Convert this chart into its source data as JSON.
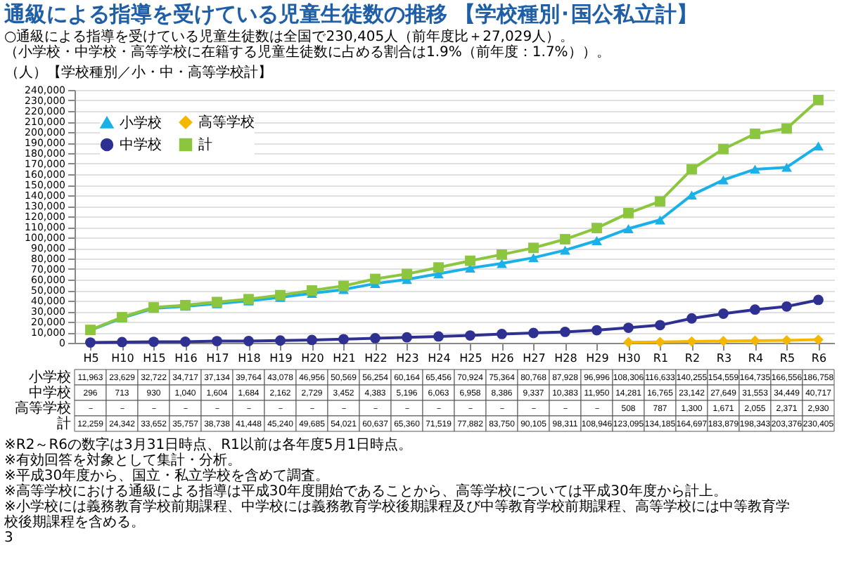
{
  "chart_data": {
    "type": "line",
    "title": "通級による指導を受けている児童生徒数の推移 【学校種別･国公私立計】",
    "subtitle": "○通級による指導を受けている児童生徒数は全国で230,405人（前年度比＋27,029人）。（小学校・中学校・高等学校に在籍する児童生徒数に占める割合は1.9%（前年度：1.7%））。",
    "ylabel": "（人）【学校種別／小・中・高等学校計】",
    "categories": [
      "H5",
      "H10",
      "H15",
      "H16",
      "H17",
      "H18",
      "H19",
      "H20",
      "H21",
      "H22",
      "H23",
      "H24",
      "H25",
      "H26",
      "H27",
      "H28",
      "H29",
      "H30",
      "R1",
      "R2",
      "R3",
      "R4",
      "R5",
      "R6"
    ],
    "series": [
      {
        "name": "小学校",
        "color": "#1ab0e8",
        "marker": "triangle",
        "values": [
          11963,
          23629,
          32722,
          34717,
          37134,
          39764,
          43078,
          46956,
          50569,
          56254,
          60164,
          65456,
          70924,
          75364,
          80768,
          87928,
          96996,
          108306,
          116633,
          140255,
          154559,
          164735,
          166556,
          186758
        ],
        "value_labels": [
          "11,963",
          "23,629",
          "32,722",
          "34,717",
          "37,134",
          "39,764",
          "43,078",
          "46,956",
          "50,569",
          "56,254",
          "60,164",
          "65,456",
          "70,924",
          "75,364",
          "80,768",
          "87,928",
          "96,996",
          "108,306",
          "116,633",
          "140,255",
          "154,559",
          "164,735",
          "166,556",
          "186,758"
        ]
      },
      {
        "name": "中学校",
        "color": "#2e3192",
        "marker": "circle",
        "values": [
          296,
          713,
          930,
          1040,
          1604,
          1684,
          2162,
          2729,
          3452,
          4383,
          5196,
          6063,
          6958,
          8386,
          9337,
          10383,
          11950,
          14281,
          16765,
          23142,
          27649,
          31553,
          34449,
          40717
        ],
        "value_labels": [
          "296",
          "713",
          "930",
          "1,040",
          "1,604",
          "1,684",
          "2,162",
          "2,729",
          "3,452",
          "4,383",
          "5,196",
          "6,063",
          "6,958",
          "8,386",
          "9,337",
          "10,383",
          "11,950",
          "14,281",
          "16,765",
          "23,142",
          "27,649",
          "31,553",
          "34,449",
          "40,717"
        ]
      },
      {
        "name": "高等学校",
        "color": "#f5b800",
        "marker": "diamond",
        "values": [
          null,
          null,
          null,
          null,
          null,
          null,
          null,
          null,
          null,
          null,
          null,
          null,
          null,
          null,
          null,
          null,
          null,
          508,
          787,
          1300,
          1671,
          2055,
          2371,
          2930
        ],
        "value_labels": [
          "－",
          "－",
          "－",
          "－",
          "－",
          "－",
          "－",
          "－",
          "－",
          "－",
          "－",
          "－",
          "－",
          "－",
          "－",
          "－",
          "－",
          "508",
          "787",
          "1,300",
          "1,671",
          "2,055",
          "2,371",
          "2,930"
        ]
      },
      {
        "name": "計",
        "color": "#8cc63f",
        "marker": "square",
        "values": [
          12259,
          24342,
          33652,
          35757,
          38738,
          41448,
          45240,
          49685,
          54021,
          60637,
          65360,
          71519,
          77882,
          83750,
          90105,
          98311,
          108946,
          123095,
          134185,
          164697,
          183879,
          198343,
          203376,
          230405
        ],
        "value_labels": [
          "12,259",
          "24,342",
          "33,652",
          "35,757",
          "38,738",
          "41,448",
          "45,240",
          "49,685",
          "54,021",
          "60,637",
          "65,360",
          "71,519",
          "77,882",
          "83,750",
          "90,105",
          "98,311",
          "108,946",
          "123,095",
          "134,185",
          "164,697",
          "183,879",
          "198,343",
          "203,376",
          "230,405"
        ]
      }
    ],
    "ylim": [
      0,
      240000
    ],
    "yticks": [
      0,
      {
        "value": 10000,
        "label": "10,000"
      },
      {
        "value": 20000,
        "label": "20,000"
      },
      {
        "value": 30000,
        "label": "30,000"
      },
      {
        "value": 40000,
        "label": "40,000"
      },
      {
        "value": 50000,
        "label": "50,000"
      },
      {
        "value": 60000,
        "label": "60,000"
      },
      {
        "value": 70000,
        "label": "70,000"
      },
      {
        "value": 80000,
        "label": "80,000"
      },
      {
        "value": 90000,
        "label": "90,000"
      },
      {
        "value": 100000,
        "label": "100,000"
      },
      {
        "value": 110000,
        "label": "110,000"
      },
      {
        "value": 120000,
        "label": "120,000"
      },
      {
        "value": 130000,
        "label": "130,000"
      },
      {
        "value": 140000,
        "label": "140,000"
      },
      {
        "value": 150000,
        "label": "150,000"
      },
      {
        "value": 160000,
        "label": "160,000"
      },
      {
        "value": 170000,
        "label": "170,000"
      },
      {
        "value": 180000,
        "label": "180,000"
      },
      {
        "value": 190000,
        "label": "190,000"
      },
      {
        "value": 200000,
        "label": "200,000"
      },
      {
        "value": 210000,
        "label": "210,000"
      },
      {
        "value": 220000,
        "label": "220,000"
      },
      {
        "value": 230000,
        "label": "230,000"
      },
      {
        "value": 240000,
        "label": "240,000"
      }
    ],
    "grid": "y",
    "legend": "top left",
    "annotations": [
      "※R2～R6の数字は3月31日時点、R1以前は各年度5月1日時点。",
      "※有効回答を対象として集計・分析。",
      "※平成30年度から、国立・私立学校を含めて調査。",
      "※高等学校における通級による指導は平成30年度開始であることから、高等学校については平成30年度から計上。",
      "※小学校には義務教育学校前期課程、中学校には義務教育学校後期課程及び中等教育学校前期課程、高等学校には中等教育学校後期課程を含める。",
      "3"
    ]
  }
}
